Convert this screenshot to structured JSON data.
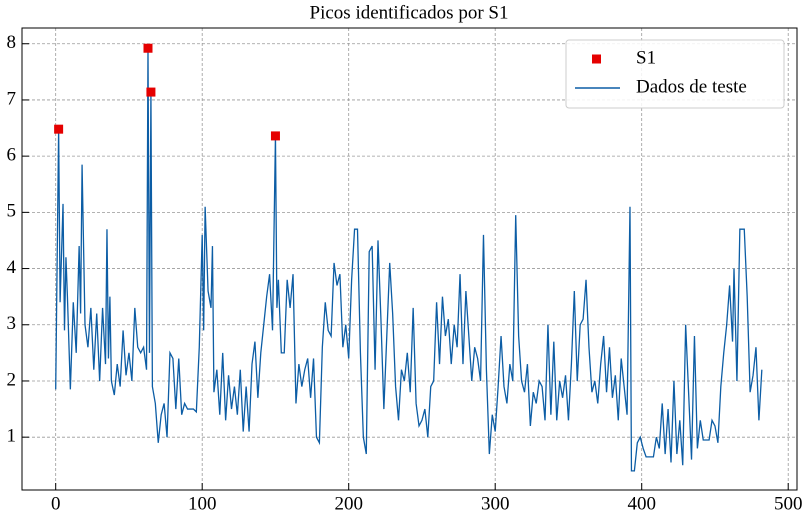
{
  "chart_data": {
    "type": "line",
    "title": "Picos identificados por S1",
    "xlim": [
      -23,
      506
    ],
    "ylim": [
      0.06,
      8.28
    ],
    "xticks": [
      0,
      100,
      200,
      300,
      400,
      500
    ],
    "yticks": [
      1,
      2,
      3,
      4,
      5,
      6,
      7,
      8
    ],
    "grid": true,
    "legend": "upper right",
    "series": [
      {
        "name": "S1",
        "kind": "scatter",
        "color": "#e50000",
        "x": [
          2,
          63,
          65,
          150
        ],
        "values": [
          6.48,
          7.92,
          7.14,
          6.36
        ]
      },
      {
        "name": "Dados de teste",
        "kind": "line",
        "color": "#0c5da5",
        "x": [
          0,
          2,
          3,
          5,
          6,
          7,
          8,
          10,
          12,
          14,
          16,
          17,
          18,
          20,
          22,
          24,
          26,
          28,
          30,
          32,
          34,
          35,
          36,
          37,
          38,
          40,
          42,
          44,
          46,
          48,
          50,
          52,
          54,
          56,
          58,
          60,
          62,
          63,
          64,
          65,
          66,
          68,
          70,
          72,
          74,
          76,
          78,
          80,
          82,
          84,
          86,
          88,
          90,
          92,
          94,
          96,
          98,
          100,
          101,
          102,
          104,
          106,
          107,
          108,
          110,
          112,
          114,
          116,
          118,
          120,
          122,
          124,
          126,
          128,
          130,
          132,
          134,
          136,
          138,
          140,
          142,
          144,
          146,
          148,
          150,
          151,
          152,
          154,
          156,
          158,
          160,
          162,
          164,
          166,
          168,
          170,
          172,
          174,
          176,
          178,
          180,
          182,
          184,
          186,
          188,
          190,
          192,
          194,
          196,
          198,
          200,
          202,
          204,
          206,
          208,
          210,
          212,
          214,
          216,
          218,
          220,
          222,
          224,
          226,
          228,
          230,
          232,
          234,
          236,
          238,
          240,
          242,
          244,
          246,
          248,
          250,
          252,
          254,
          256,
          258,
          260,
          262,
          264,
          266,
          268,
          270,
          272,
          274,
          276,
          278,
          280,
          282,
          284,
          286,
          288,
          290,
          292,
          294,
          296,
          298,
          300,
          302,
          304,
          306,
          308,
          310,
          312,
          314,
          316,
          318,
          320,
          322,
          324,
          326,
          328,
          330,
          332,
          334,
          336,
          338,
          340,
          342,
          344,
          346,
          348,
          350,
          352,
          354,
          356,
          358,
          360,
          362,
          364,
          366,
          368,
          370,
          372,
          374,
          376,
          378,
          380,
          382,
          384,
          386,
          388,
          390,
          392,
          393,
          395,
          397,
          399,
          401,
          403,
          408,
          410,
          412,
          414,
          416,
          418,
          420,
          422,
          424,
          426,
          428,
          430,
          432,
          434,
          436,
          438,
          440,
          442,
          446,
          448,
          450,
          452,
          454,
          456,
          458,
          460,
          462,
          463,
          465,
          467,
          470,
          472,
          474,
          476,
          478,
          480,
          482
        ],
        "values": [
          1.85,
          6.48,
          3.4,
          5.15,
          2.9,
          4.2,
          3.5,
          1.85,
          3.4,
          2.5,
          4.4,
          3.2,
          5.85,
          3.0,
          2.6,
          3.3,
          2.2,
          3.2,
          2.0,
          3.3,
          2.3,
          4.7,
          2.4,
          3.5,
          2.0,
          1.75,
          2.3,
          1.9,
          2.9,
          2.1,
          2.5,
          2.0,
          3.3,
          2.6,
          2.5,
          2.6,
          2.2,
          7.92,
          2.5,
          7.14,
          1.9,
          1.6,
          0.9,
          1.4,
          1.6,
          1.0,
          2.5,
          2.4,
          1.5,
          2.4,
          1.4,
          1.6,
          1.5,
          1.5,
          1.5,
          1.45,
          2.6,
          4.6,
          2.9,
          5.1,
          3.6,
          3.3,
          4.4,
          1.8,
          2.2,
          1.4,
          2.5,
          1.3,
          2.1,
          1.5,
          1.9,
          1.4,
          2.2,
          1.1,
          1.9,
          1.1,
          2.3,
          2.7,
          1.7,
          2.5,
          3.0,
          3.5,
          3.9,
          2.9,
          6.36,
          3.3,
          3.8,
          2.5,
          2.5,
          3.8,
          3.3,
          3.9,
          1.6,
          2.3,
          1.9,
          2.2,
          2.4,
          1.7,
          2.4,
          1.0,
          0.9,
          2.6,
          3.4,
          2.9,
          2.8,
          4.1,
          3.7,
          3.9,
          2.6,
          3.0,
          2.4,
          3.8,
          4.7,
          4.7,
          2.5,
          1.0,
          0.7,
          4.3,
          4.4,
          2.2,
          4.5,
          3.1,
          1.5,
          2.8,
          4.1,
          3.2,
          1.9,
          1.3,
          2.2,
          2.0,
          2.5,
          1.8,
          3.3,
          1.6,
          1.2,
          1.3,
          1.5,
          1.0,
          1.9,
          2.0,
          3.4,
          2.3,
          3.5,
          2.8,
          3.1,
          2.3,
          3.0,
          2.6,
          3.9,
          2.3,
          3.6,
          2.8,
          2.0,
          2.6,
          2.4,
          2.0,
          4.6,
          2.2,
          0.7,
          1.4,
          1.1,
          1.9,
          2.8,
          1.9,
          1.6,
          2.3,
          2.0,
          4.95,
          2.8,
          2.0,
          1.8,
          2.3,
          1.2,
          1.8,
          1.6,
          2.0,
          1.9,
          1.3,
          3.0,
          1.4,
          2.7,
          1.3,
          2.0,
          1.7,
          2.1,
          1.3,
          2.3,
          3.6,
          2.0,
          3.0,
          3.1,
          3.8,
          2.6,
          1.8,
          2.0,
          1.6,
          2.3,
          2.8,
          1.8,
          2.6,
          1.7,
          2.1,
          1.3,
          2.4,
          1.9,
          1.4,
          5.1,
          0.4,
          0.4,
          0.9,
          1.0,
          0.8,
          0.65,
          0.65,
          1.0,
          0.8,
          1.6,
          0.7,
          1.5,
          0.55,
          2.0,
          0.7,
          1.3,
          0.5,
          3.0,
          1.8,
          0.6,
          2.8,
          0.8,
          1.3,
          0.95,
          0.95,
          1.3,
          1.2,
          0.9,
          1.9,
          2.5,
          3.0,
          3.7,
          2.7,
          4.0,
          2.0,
          4.7,
          4.7,
          3.5,
          1.8,
          2.1,
          2.6,
          1.3,
          2.2
        ]
      }
    ]
  }
}
